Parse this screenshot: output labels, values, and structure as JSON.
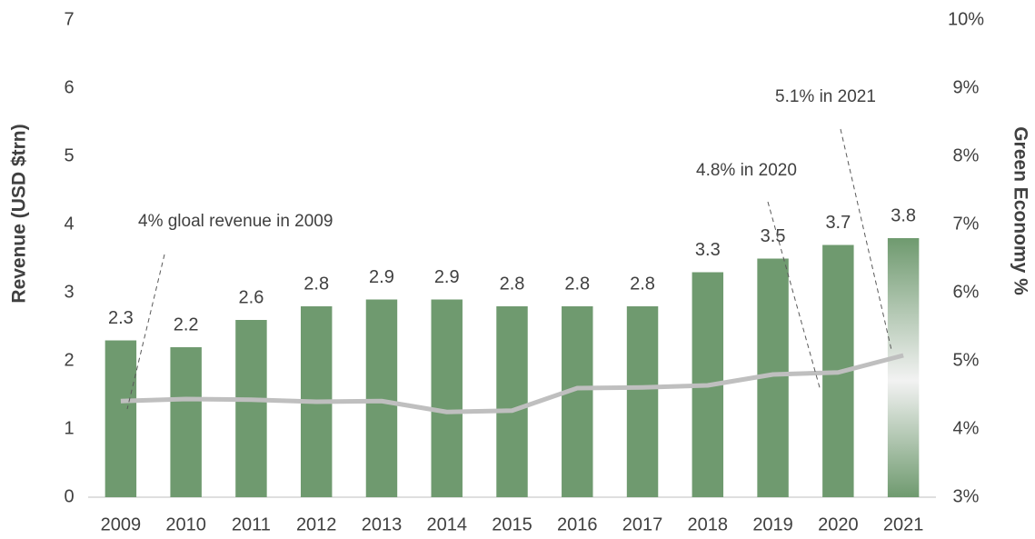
{
  "chart_data": {
    "type": "bar",
    "categories": [
      "2009",
      "2010",
      "2011",
      "2012",
      "2013",
      "2014",
      "2015",
      "2016",
      "2017",
      "2018",
      "2019",
      "2020",
      "2021"
    ],
    "y_label": "Revenue (USD $trn)",
    "y2_label": "Green Economy %",
    "series": [
      {
        "name": "Revenue",
        "type": "bar",
        "color": "#6f9a6f",
        "values": [
          2.3,
          2.2,
          2.6,
          2.8,
          2.9,
          2.9,
          2.8,
          2.8,
          2.8,
          3.3,
          3.5,
          3.7,
          3.8
        ]
      },
      {
        "name": "Green Economy %",
        "type": "line",
        "axis": "y2",
        "color": "#bfbfbf",
        "values": [
          4.41,
          4.44,
          4.43,
          4.4,
          4.41,
          4.25,
          4.27,
          4.6,
          4.61,
          4.64,
          4.8,
          4.83,
          5.08
        ]
      }
    ],
    "ylim": [
      0,
      7
    ],
    "yticks": [
      0,
      1,
      2,
      3,
      4,
      5,
      6,
      7
    ],
    "y2lim": [
      3,
      10
    ],
    "y2ticks": [
      {
        "value": 3,
        "label": "3%"
      },
      {
        "value": 4,
        "label": "4%"
      },
      {
        "value": 5,
        "label": "5%"
      },
      {
        "value": 6,
        "label": "6%"
      },
      {
        "value": 7,
        "label": "7%"
      },
      {
        "value": 8,
        "label": "8%"
      },
      {
        "value": 9,
        "label": "9%"
      },
      {
        "value": 10,
        "label": "10%"
      }
    ],
    "annotations": [
      "4% gloal revenue in 2009",
      "4.8% in 2020",
      "5.1% in 2021"
    ]
  }
}
